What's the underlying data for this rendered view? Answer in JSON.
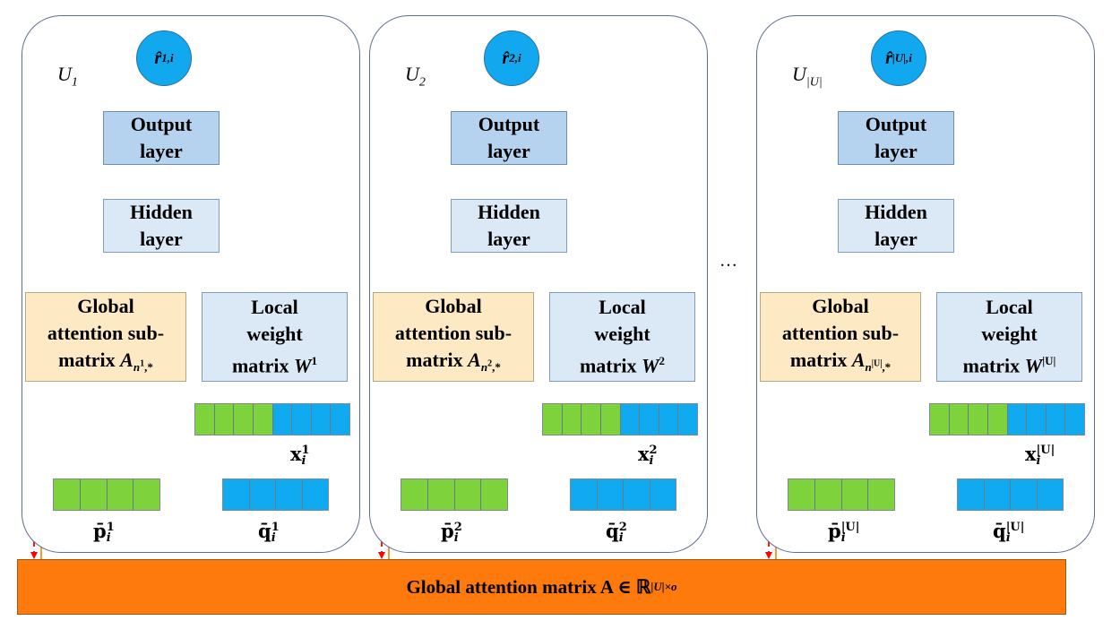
{
  "panels": [
    {
      "user_label": "U",
      "user_sub": "1",
      "output_base": "r̂",
      "output_sub": "1,i",
      "output_layer": [
        "Output",
        "layer"
      ],
      "hidden_layer": [
        "Hidden",
        "layer"
      ],
      "global_block": [
        "Global",
        "attention sub-",
        "matrix "
      ],
      "global_sym": "A",
      "global_sub": "n",
      "global_subsup": "1",
      "global_tail": ",*",
      "local_block": [
        "Local",
        "weight",
        "matrix "
      ],
      "local_sym": "W",
      "local_sup": "1",
      "x_label": "x",
      "x_sup": "1",
      "x_sub": "i",
      "p_label": "p̄",
      "p_sup": "1",
      "p_sub": "i",
      "q_label": "q̄",
      "q_sup": "1",
      "q_sub": "i"
    },
    {
      "user_label": "U",
      "user_sub": "2",
      "output_base": "r̂",
      "output_sub": "2,i",
      "output_layer": [
        "Output",
        "layer"
      ],
      "hidden_layer": [
        "Hidden",
        "layer"
      ],
      "global_block": [
        "Global",
        "attention sub-",
        "matrix "
      ],
      "global_sym": "A",
      "global_sub": "n",
      "global_subsup": "2",
      "global_tail": ",*",
      "local_block": [
        "Local",
        "weight",
        "matrix "
      ],
      "local_sym": "W",
      "local_sup": "2",
      "x_label": "x",
      "x_sup": "2",
      "x_sub": "i",
      "p_label": "p̄",
      "p_sup": "2",
      "p_sub": "i",
      "q_label": "q̄",
      "q_sup": "2",
      "q_sub": "i"
    },
    {
      "user_label": "U",
      "user_sub": "|U|",
      "output_base": "r̂",
      "output_sub": "|U|,i",
      "output_layer": [
        "Output",
        "layer"
      ],
      "hidden_layer": [
        "Hidden",
        "layer"
      ],
      "global_block": [
        "Global",
        "attention sub-",
        "matrix "
      ],
      "global_sym": "A",
      "global_sub": "n",
      "global_subsup": "|U|",
      "global_tail": ",*",
      "local_block": [
        "Local",
        "weight",
        "matrix "
      ],
      "local_sym": "W",
      "local_sup": "|U|",
      "x_label": "x",
      "x_sup": "|U|",
      "x_sub": "i",
      "p_label": "p̄",
      "p_sup": "|U|",
      "p_sub": "i",
      "q_label": "q̄",
      "q_sup": "|U|",
      "q_sub": "i"
    }
  ],
  "ellipsis": "…",
  "global_matrix": {
    "text": "Global attention matrix A ∈ ℝ",
    "sup": "|U|×o"
  },
  "colors": {
    "panel_border": "#5b6f8c",
    "circle": "#12a8f0",
    "output_layer": "#b5d3ee",
    "hidden_layer": "#dbe9f7",
    "global_block": "#fde9c4",
    "green_cell": "#7ed23b",
    "blue_cell": "#10aaf0",
    "global_bar": "#ff7a0c",
    "dashed_arrow": "#ff0000",
    "solid_arrow": "#ff8c1a"
  }
}
